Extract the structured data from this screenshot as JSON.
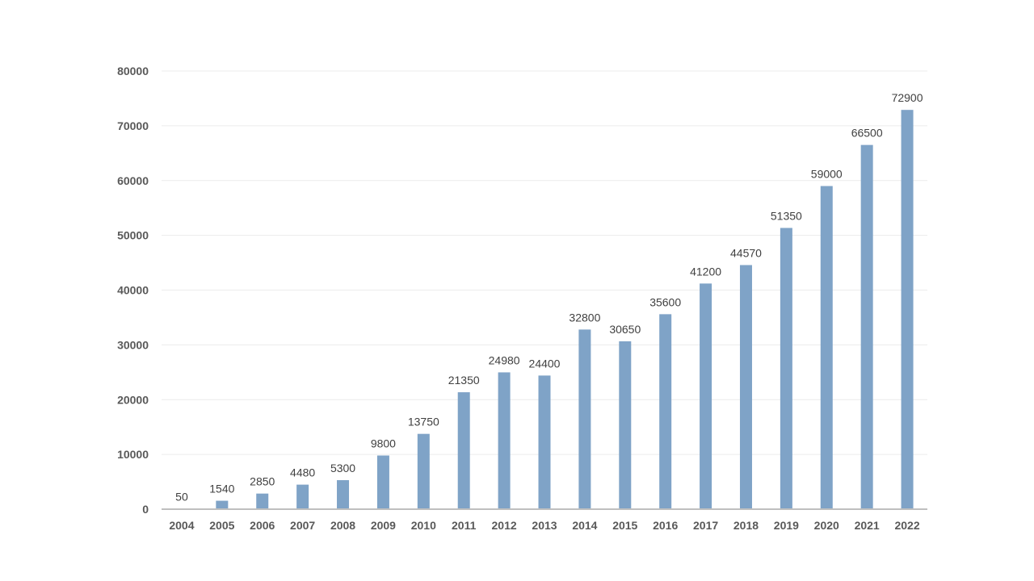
{
  "chart_data": {
    "type": "bar",
    "title": "",
    "xlabel": "",
    "ylabel": "",
    "categories": [
      "2004",
      "2005",
      "2006",
      "2007",
      "2008",
      "2009",
      "2010",
      "2011",
      "2012",
      "2013",
      "2014",
      "2015",
      "2016",
      "2017",
      "2018",
      "2019",
      "2020",
      "2021",
      "2022"
    ],
    "values": [
      50,
      1540,
      2850,
      4480,
      5300,
      9800,
      13750,
      21350,
      24980,
      24400,
      32800,
      30650,
      35600,
      41200,
      44570,
      51350,
      59000,
      66500,
      72900
    ],
    "data_labels": [
      "50",
      "1540",
      "2850",
      "4480",
      "5300",
      "9800",
      "13750",
      "21350",
      "24980",
      "24400",
      "32800",
      "30650",
      "35600",
      "41200",
      "44570",
      "51350",
      "59000",
      "66500",
      "72900"
    ],
    "yticks": [
      0,
      10000,
      20000,
      30000,
      40000,
      50000,
      60000,
      70000,
      80000
    ],
    "ylim": [
      0,
      80000
    ],
    "grid": true,
    "legend": "none",
    "bar_color": "#7fa3c7"
  }
}
